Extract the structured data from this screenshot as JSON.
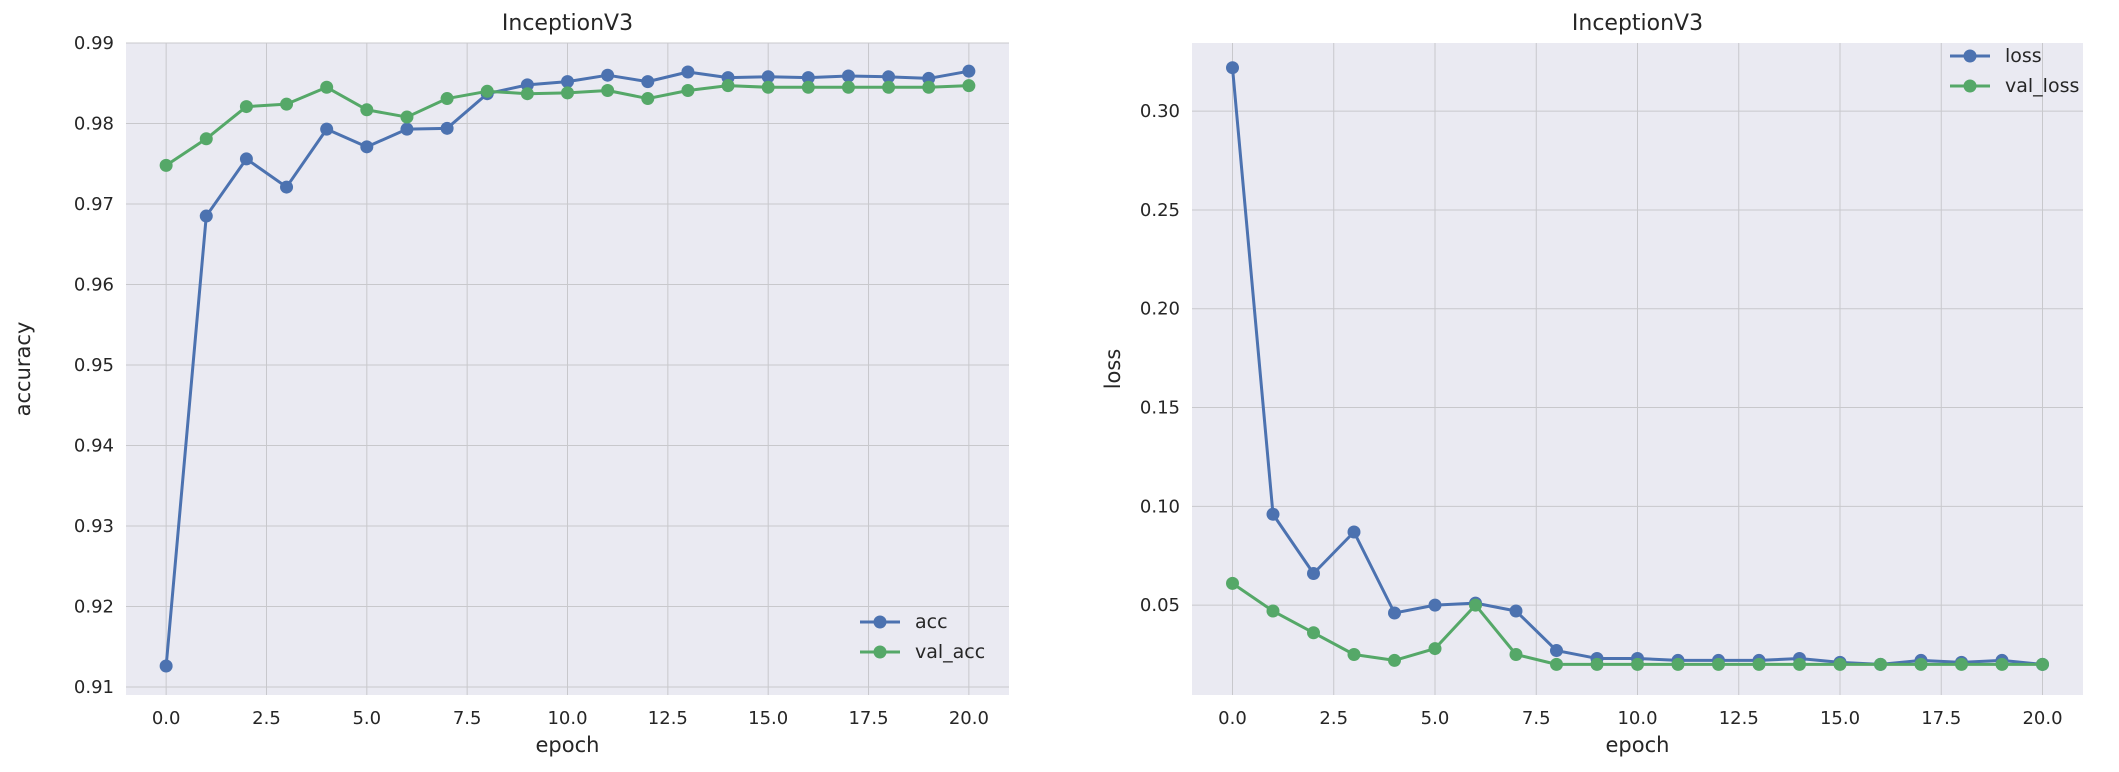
{
  "colors": {
    "plot_bg": "#EAEAF2",
    "grid": "#C8C8CC",
    "series_blue": "#4C72B0",
    "series_green": "#55A868"
  },
  "chart_data": [
    {
      "type": "line",
      "title": "InceptionV3",
      "xlabel": "epoch",
      "ylabel": "accuracy",
      "xlim": [
        -1,
        21
      ],
      "ylim": [
        0.909,
        0.99
      ],
      "xticks": [
        0.0,
        2.5,
        5.0,
        7.5,
        10.0,
        12.5,
        15.0,
        17.5,
        20.0
      ],
      "xtick_labels": [
        "0.0",
        "2.5",
        "5.0",
        "7.5",
        "10.0",
        "12.5",
        "15.0",
        "17.5",
        "20.0"
      ],
      "yticks": [
        0.91,
        0.92,
        0.93,
        0.94,
        0.95,
        0.96,
        0.97,
        0.98,
        0.99
      ],
      "ytick_labels": [
        "0.91",
        "0.92",
        "0.93",
        "0.94",
        "0.95",
        "0.96",
        "0.97",
        "0.98",
        "0.99"
      ],
      "grid": true,
      "legend_position": "bottom-right",
      "x": [
        0,
        1,
        2,
        3,
        4,
        5,
        6,
        7,
        8,
        9,
        10,
        11,
        12,
        13,
        14,
        15,
        16,
        17,
        18,
        19,
        20
      ],
      "series": [
        {
          "name": "acc",
          "color": "#4C72B0",
          "values": [
            0.9126,
            0.9685,
            0.9756,
            0.9721,
            0.9793,
            0.9771,
            0.9793,
            0.9794,
            0.9837,
            0.9848,
            0.9852,
            0.986,
            0.9852,
            0.9864,
            0.9857,
            0.9858,
            0.9857,
            0.9859,
            0.9858,
            0.9856,
            0.9865
          ]
        },
        {
          "name": "val_acc",
          "color": "#55A868",
          "values": [
            0.9748,
            0.9781,
            0.9821,
            0.9824,
            0.9845,
            0.9817,
            0.9808,
            0.9831,
            0.984,
            0.9837,
            0.9838,
            0.9841,
            0.9831,
            0.9841,
            0.9847,
            0.9845,
            0.9845,
            0.9845,
            0.9845,
            0.9845,
            0.9847
          ]
        }
      ]
    },
    {
      "type": "line",
      "title": "InceptionV3",
      "xlabel": "epoch",
      "ylabel": "loss",
      "xlim": [
        -1,
        21
      ],
      "ylim": [
        0.0045,
        0.3345
      ],
      "xticks": [
        0.0,
        2.5,
        5.0,
        7.5,
        10.0,
        12.5,
        15.0,
        17.5,
        20.0
      ],
      "xtick_labels": [
        "0.0",
        "2.5",
        "5.0",
        "7.5",
        "10.0",
        "12.5",
        "15.0",
        "17.5",
        "20.0"
      ],
      "yticks": [
        0.05,
        0.1,
        0.15,
        0.2,
        0.25,
        0.3
      ],
      "ytick_labels": [
        "0.05",
        "0.10",
        "0.15",
        "0.20",
        "0.25",
        "0.30"
      ],
      "grid": true,
      "legend_position": "top-right",
      "x": [
        0,
        1,
        2,
        3,
        4,
        5,
        6,
        7,
        8,
        9,
        10,
        11,
        12,
        13,
        14,
        15,
        16,
        17,
        18,
        19,
        20
      ],
      "series": [
        {
          "name": "loss",
          "color": "#4C72B0",
          "values": [
            0.322,
            0.096,
            0.066,
            0.087,
            0.046,
            0.05,
            0.051,
            0.047,
            0.027,
            0.023,
            0.023,
            0.022,
            0.022,
            0.022,
            0.023,
            0.021,
            0.02,
            0.022,
            0.021,
            0.022,
            0.02
          ]
        },
        {
          "name": "val_loss",
          "color": "#55A868",
          "values": [
            0.061,
            0.047,
            0.036,
            0.025,
            0.022,
            0.028,
            0.05,
            0.025,
            0.02,
            0.02,
            0.02,
            0.02,
            0.02,
            0.02,
            0.02,
            0.02,
            0.02,
            0.02,
            0.02,
            0.02,
            0.02
          ]
        }
      ]
    }
  ]
}
